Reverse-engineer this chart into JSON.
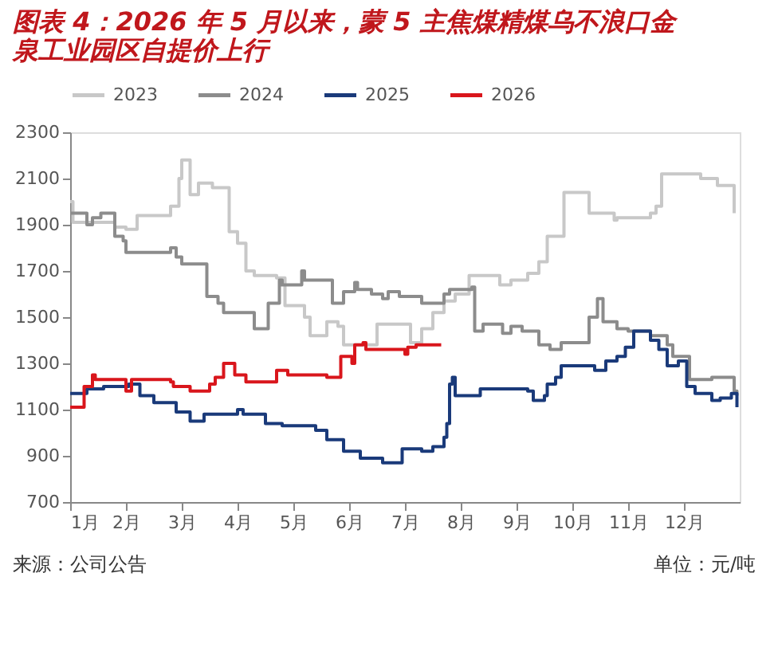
{
  "chart_data": {
    "type": "step",
    "title": "图表 4：2026 年 5 月以来，蒙 5 主焦煤精煤乌不浪口金泉工业园区自提价上行",
    "annotations": [
      "来源：公司公告",
      "单位：元/吨"
    ],
    "xlim": [
      1,
      13
    ],
    "xticks": [
      {
        "value": 1,
        "label": "1月"
      },
      {
        "value": 2,
        "label": "2月"
      },
      {
        "value": 3,
        "label": "3月"
      },
      {
        "value": 4,
        "label": "4月"
      },
      {
        "value": 5,
        "label": "5月"
      },
      {
        "value": 6,
        "label": "6月"
      },
      {
        "value": 7,
        "label": "7月"
      },
      {
        "value": 8,
        "label": "8月"
      },
      {
        "value": 9,
        "label": "9月"
      },
      {
        "value": 10,
        "label": "10月"
      },
      {
        "value": 11,
        "label": "11月"
      },
      {
        "value": 12,
        "label": "12月"
      }
    ],
    "ylim": [
      700,
      2300
    ],
    "yticks": [
      700,
      900,
      1100,
      1300,
      1500,
      1700,
      1900,
      2100,
      2300
    ],
    "grid": false,
    "legend": "top",
    "line_style": "solid",
    "marker": "none",
    "series": [
      {
        "name": "2023",
        "color": "#c8c8c8",
        "x": [
          1.0,
          1.05,
          1.8,
          2.0,
          2.2,
          2.8,
          2.95,
          3.0,
          3.15,
          3.3,
          3.55,
          3.85,
          4.0,
          4.15,
          4.3,
          4.7,
          4.85,
          5.2,
          5.3,
          5.6,
          5.8,
          5.9,
          6.5,
          7.1,
          7.3,
          7.5,
          7.7,
          7.9,
          8.15,
          8.7,
          8.9,
          9.2,
          9.4,
          9.55,
          9.85,
          10.3,
          10.75,
          10.8,
          11.4,
          11.5,
          11.6,
          12.3,
          12.6,
          12.9
        ],
        "values": [
          2000,
          1910,
          1890,
          1880,
          1940,
          1980,
          2100,
          2180,
          2030,
          2080,
          2060,
          1870,
          1820,
          1700,
          1680,
          1670,
          1550,
          1500,
          1420,
          1480,
          1460,
          1380,
          1470,
          1390,
          1450,
          1520,
          1570,
          1600,
          1680,
          1640,
          1660,
          1690,
          1740,
          1850,
          2040,
          1950,
          1920,
          1930,
          1950,
          1980,
          2120,
          2100,
          2070,
          1950
        ]
      },
      {
        "name": "2024",
        "color": "#8c8c8c",
        "x": [
          1.0,
          1.3,
          1.4,
          1.55,
          1.8,
          1.95,
          2.0,
          2.8,
          2.9,
          3.0,
          3.45,
          3.65,
          3.75,
          4.3,
          4.55,
          4.75,
          4.8,
          5.15,
          5.2,
          5.7,
          5.9,
          6.1,
          6.15,
          6.4,
          6.6,
          6.7,
          6.9,
          7.3,
          7.7,
          7.8,
          8.2,
          8.25,
          8.4,
          8.75,
          8.9,
          9.1,
          9.4,
          9.6,
          9.8,
          10.3,
          10.45,
          10.55,
          10.8,
          11.0,
          11.4,
          11.7,
          11.8,
          12.1,
          12.5,
          12.9,
          12.95
        ],
        "values": [
          1950,
          1900,
          1930,
          1950,
          1850,
          1830,
          1780,
          1800,
          1760,
          1730,
          1590,
          1560,
          1520,
          1450,
          1560,
          1660,
          1640,
          1700,
          1660,
          1560,
          1610,
          1650,
          1620,
          1600,
          1580,
          1610,
          1590,
          1560,
          1600,
          1620,
          1630,
          1440,
          1470,
          1430,
          1460,
          1440,
          1380,
          1360,
          1390,
          1500,
          1580,
          1480,
          1450,
          1440,
          1420,
          1380,
          1330,
          1230,
          1240,
          1180,
          1160
        ]
      },
      {
        "name": "2025",
        "color": "#1a3a7a",
        "x": [
          1.0,
          1.3,
          1.6,
          2.05,
          2.25,
          2.5,
          2.9,
          3.15,
          3.4,
          4.0,
          4.1,
          4.5,
          4.8,
          5.4,
          5.6,
          5.9,
          6.2,
          6.6,
          6.95,
          7.3,
          7.5,
          7.7,
          7.75,
          7.8,
          7.85,
          7.9,
          8.35,
          9.2,
          9.3,
          9.5,
          9.55,
          9.7,
          9.8,
          10.4,
          10.6,
          10.8,
          10.95,
          11.1,
          11.4,
          11.55,
          11.7,
          11.9,
          12.05,
          12.2,
          12.5,
          12.65,
          12.85,
          12.95
        ],
        "values": [
          1170,
          1190,
          1200,
          1210,
          1160,
          1130,
          1090,
          1050,
          1080,
          1100,
          1080,
          1040,
          1030,
          1010,
          970,
          920,
          890,
          870,
          930,
          920,
          940,
          980,
          1040,
          1210,
          1240,
          1160,
          1190,
          1180,
          1140,
          1160,
          1210,
          1240,
          1290,
          1270,
          1310,
          1330,
          1370,
          1440,
          1400,
          1360,
          1290,
          1310,
          1200,
          1170,
          1140,
          1150,
          1170,
          1110
        ]
      },
      {
        "name": "2026",
        "color": "#d9161c",
        "x": [
          1.0,
          1.25,
          1.4,
          1.45,
          2.0,
          2.1,
          2.8,
          2.85,
          3.15,
          3.5,
          3.6,
          3.75,
          3.95,
          4.15,
          4.7,
          4.9,
          5.6,
          5.85,
          6.05,
          6.1,
          6.25,
          6.3,
          7.0,
          7.05,
          7.2,
          7.65
        ],
        "values": [
          1110,
          1200,
          1250,
          1230,
          1180,
          1230,
          1220,
          1200,
          1180,
          1210,
          1240,
          1300,
          1250,
          1220,
          1270,
          1250,
          1240,
          1330,
          1300,
          1380,
          1390,
          1360,
          1340,
          1370,
          1380,
          1380
        ]
      }
    ]
  }
}
